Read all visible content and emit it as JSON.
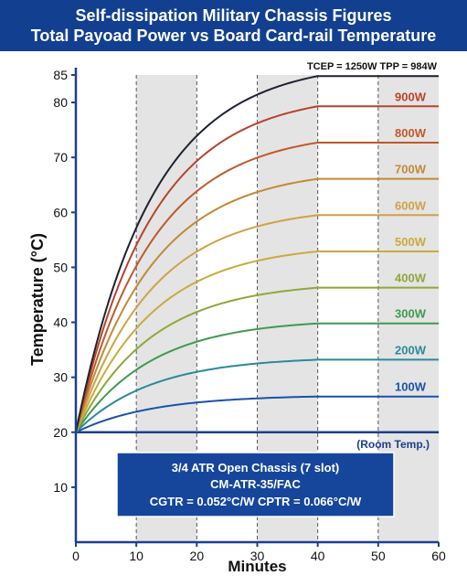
{
  "header": {
    "title_line1": "Self-dissipation Military Chassis Figures",
    "title_line2": "Total Payoad Power vs Board Card-rail Temperature"
  },
  "colors": {
    "header_bg": "#123f8f",
    "axis": "#1d3f8f",
    "info_box_bg": "#16469b",
    "shade": "#e4e4e4"
  },
  "chart_data": {
    "type": "line",
    "xlabel": "Minutes",
    "ylabel": "Temperature (°C)",
    "xlim": [
      0,
      60
    ],
    "ylim": [
      0,
      85
    ],
    "x_ticks": [
      "0",
      "10",
      "20",
      "30",
      "40",
      "50",
      "60"
    ],
    "y_ticks": [
      "10",
      "20",
      "30",
      "40",
      "50",
      "60",
      "70",
      "80",
      "85"
    ],
    "shaded_x_bands": [
      [
        10,
        20
      ],
      [
        30,
        40
      ],
      [
        50,
        60
      ]
    ],
    "top_label": "TCEP = 1250W  TPP = 984W",
    "room_label": "(Room Temp.)",
    "room_temp": 20,
    "plateau_minute": 40,
    "series": [
      {
        "name": "100W",
        "steady": 26.5,
        "color": "#1a52a8"
      },
      {
        "name": "200W",
        "steady": 33.2,
        "color": "#2a8a99"
      },
      {
        "name": "300W",
        "steady": 39.8,
        "color": "#3f9a52"
      },
      {
        "name": "400W",
        "steady": 46.3,
        "color": "#8ea83a"
      },
      {
        "name": "500W",
        "steady": 52.9,
        "color": "#c9ab3c"
      },
      {
        "name": "600W",
        "steady": 59.5,
        "color": "#cfa246"
      },
      {
        "name": "700W",
        "steady": 66.1,
        "color": "#c08a38"
      },
      {
        "name": "800W",
        "steady": 72.7,
        "color": "#c0592b"
      },
      {
        "name": "900W",
        "steady": 79.3,
        "color": "#b8432c"
      },
      {
        "name": "",
        "steady": 84.8,
        "color": "#1e2230"
      }
    ],
    "info_box": {
      "line1": "3/4 ATR Open Chassis (7 slot)",
      "line2": "CM-ATR-35/FAC",
      "line3": "CGTR = 0.052°C/W   CPTR = 0.066°C/W"
    }
  }
}
